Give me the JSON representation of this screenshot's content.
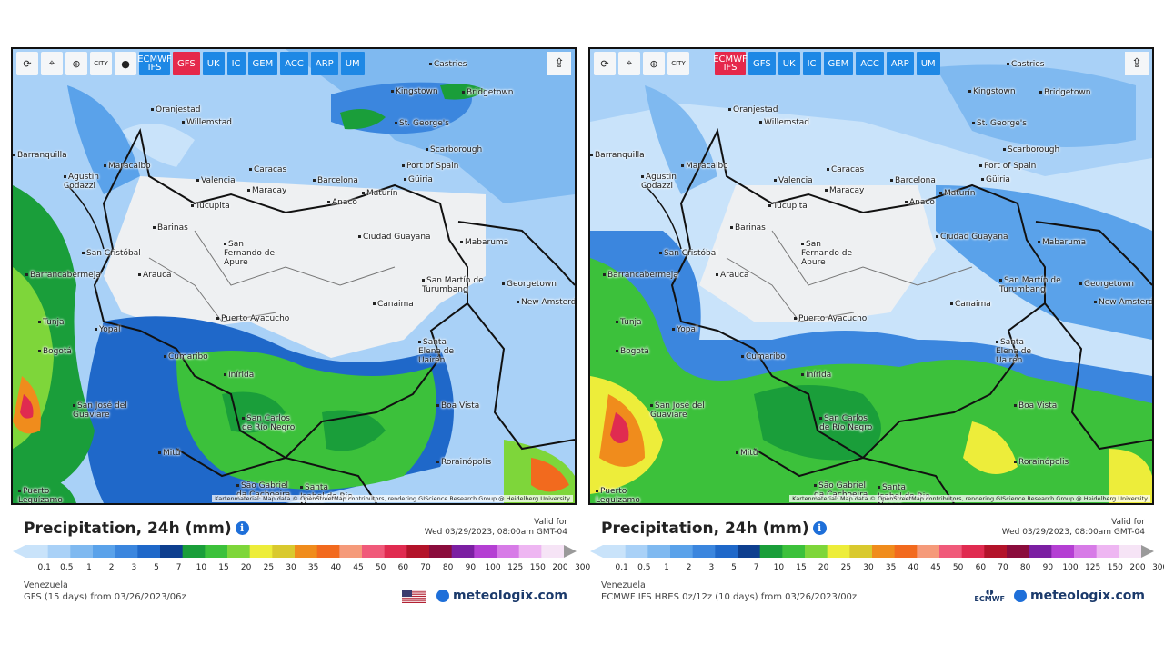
{
  "panels": [
    {
      "toolbar": {
        "buttons": [
          "⟳",
          "⌖",
          "⊕",
          "CITY",
          "●"
        ],
        "models": [
          {
            "label": "ECMWF IFS",
            "active": false
          },
          {
            "label": "GFS",
            "active": true
          },
          {
            "label": "UK",
            "active": false
          },
          {
            "label": "IC",
            "active": false
          },
          {
            "label": "GEM",
            "active": false
          },
          {
            "label": "ACC",
            "active": false
          },
          {
            "label": "ARP",
            "active": false
          },
          {
            "label": "UM",
            "active": false
          }
        ]
      },
      "attribution": "Kartenmaterial: Map data © OpenStreetMap contributors, rendering GIScience Research Group @ Heidelberg University",
      "title": "Precipitation, 24h (mm)",
      "valid_label": "Valid for",
      "valid_time": "Wed 03/29/2023, 08:00am GMT-04",
      "region": "Venezuela",
      "model_run": "GFS (15 days) from 03/26/2023/06z",
      "brand": "meteologix.com"
    },
    {
      "toolbar": {
        "buttons": [
          "⟳",
          "⌖",
          "⊕",
          "CITY"
        ],
        "models": [
          {
            "label": "ECMWF IFS",
            "active": true
          },
          {
            "label": "GFS",
            "active": false
          },
          {
            "label": "UK",
            "active": false
          },
          {
            "label": "IC",
            "active": false
          },
          {
            "label": "GEM",
            "active": false
          },
          {
            "label": "ACC",
            "active": false
          },
          {
            "label": "ARP",
            "active": false
          },
          {
            "label": "UM",
            "active": false
          }
        ]
      },
      "attribution": "Kartenmaterial: Map data © OpenStreetMap contributors, rendering GIScience Research Group @ Heidelberg University",
      "title": "Precipitation, 24h (mm)",
      "valid_label": "Valid for",
      "valid_time": "Wed 03/29/2023, 08:00am GMT-04",
      "region": "Venezuela",
      "model_run": "ECMWF IFS HRES 0z/12z (10 days) from 03/26/2023/00z",
      "brand": "meteologix.com",
      "ecmwf_logo": "ECMWF"
    }
  ],
  "cities": [
    "Castries",
    "Kingstown",
    "Bridgetown",
    "Oranjestad",
    "Willemstad",
    "St. George's",
    "Scarborough",
    "Barranquilla",
    "Maracaibo",
    "Port of Spain",
    "Caracas",
    "Valencia",
    "Barcelona",
    "Maracay",
    "Güiria",
    "Agustín Codazzi",
    "Maturín",
    "Tucupita",
    "Anaco",
    "Barinas",
    "San Cristóbal",
    "Mabaruma",
    "Ciudad Guayana",
    "San Fernando de Apure",
    "Barrancabermeja",
    "Arauca",
    "San Martín de Turumbang",
    "Georgetown",
    "New Amsterdam",
    "Canaima",
    "Tunja",
    "Yopal",
    "Puerto Ayacucho",
    "Bogotá",
    "Santa Elena de Uairén",
    "Cumaribo",
    "Inírida",
    "San José del Guaviare",
    "Boa Vista",
    "San Carlos de Río Negro",
    "Mitú",
    "Rorainópolis",
    "São Gabriel da Cachoeira",
    "Santa Isabel do Rio Negro",
    "Puerto Leguízamo"
  ],
  "legend": {
    "ticks": [
      "0.1",
      "0.5",
      "1",
      "2",
      "3",
      "5",
      "7",
      "10",
      "15",
      "20",
      "25",
      "30",
      "35",
      "40",
      "45",
      "50",
      "60",
      "70",
      "80",
      "90",
      "100",
      "125",
      "150",
      "200",
      "300"
    ],
    "colors": [
      "#c9e3fa",
      "#a9d1f7",
      "#7fb9f0",
      "#5aa2ea",
      "#3b86de",
      "#1f68c9",
      "#0e3f8f",
      "#1a9e3a",
      "#3cc13b",
      "#7ed63a",
      "#eded3a",
      "#d9c92e",
      "#f08c1c",
      "#f26a1e",
      "#f59a7a",
      "#f05a7a",
      "#e02b50",
      "#b3132a",
      "#8a0c3c",
      "#7b1fa2",
      "#b43fd3",
      "#d77be7",
      "#eeb6f2",
      "#f6e4f6",
      "#d8d8d8",
      "#9a9a9a"
    ]
  }
}
